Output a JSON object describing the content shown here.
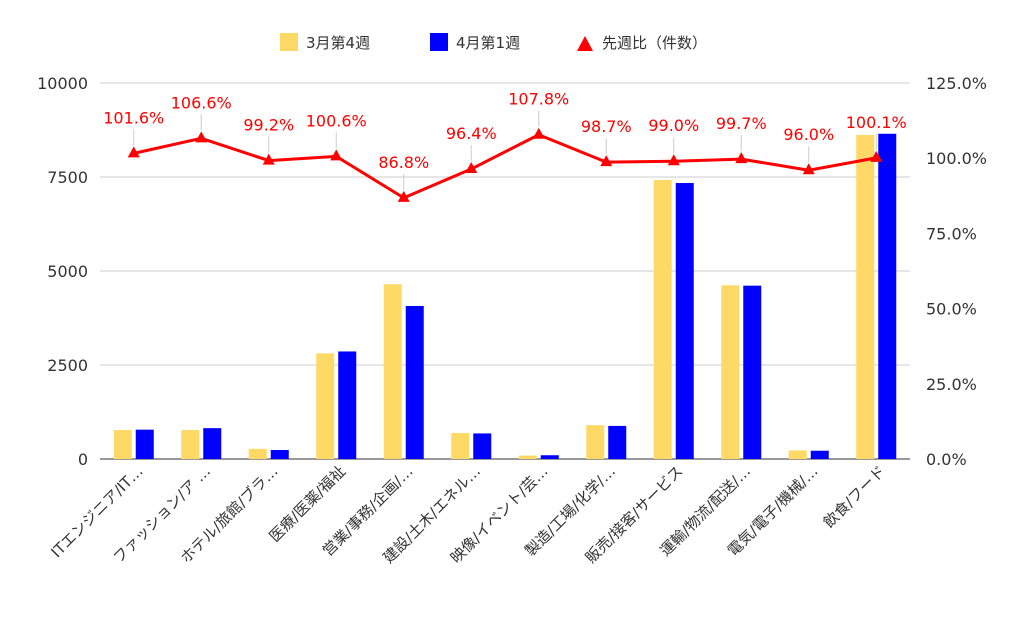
{
  "chart_data": {
    "type": "bar",
    "categories": [
      "ITエンジニア/IT…",
      "ファッション/ア …",
      "ホテル/旅館/ブラ…",
      "医療/医薬/福祉",
      "営業/事務/企画/…",
      "建設/土木/エネル…",
      "映像/イベント/芸…",
      "製造/工場/化学/…",
      "販売/接客/サービス",
      "運輸/物流/配送/…",
      "電気/電子/機械/…",
      "飲食/フード"
    ],
    "series": [
      {
        "name": "3月第4週",
        "type": "bar",
        "axis": "left",
        "color": "#ffd966",
        "values": [
          770,
          770,
          270,
          2810,
          4650,
          690,
          90,
          900,
          7420,
          4620,
          230,
          8620
        ]
      },
      {
        "name": "4月第1週",
        "type": "bar",
        "axis": "left",
        "color": "#0000ff",
        "values": [
          780,
          820,
          240,
          2860,
          4070,
          680,
          100,
          880,
          7340,
          4610,
          220,
          8650
        ]
      },
      {
        "name": "先週比（件数）",
        "type": "line",
        "axis": "right",
        "color": "#ff0000",
        "marker": "triangle",
        "values": [
          101.6,
          106.6,
          99.2,
          100.6,
          86.8,
          96.4,
          107.8,
          98.7,
          99.0,
          99.7,
          96.0,
          100.1
        ],
        "labels": [
          "101.6%",
          "106.6%",
          "99.2%",
          "100.6%",
          "86.8%",
          "96.4%",
          "107.8%",
          "98.7%",
          "99.0%",
          "99.7%",
          "96.0%",
          "100.1%"
        ]
      }
    ],
    "y_left": {
      "ylim": [
        0,
        10000
      ],
      "ticks": [
        "0",
        "2500",
        "5000",
        "7500",
        "10000"
      ]
    },
    "y_right": {
      "ylim": [
        0,
        125
      ],
      "ticks": [
        "0.0%",
        "25.0%",
        "50.0%",
        "75.0%",
        "100.0%",
        "125.0%"
      ]
    },
    "legend": {
      "position": "top"
    },
    "grid": true
  }
}
